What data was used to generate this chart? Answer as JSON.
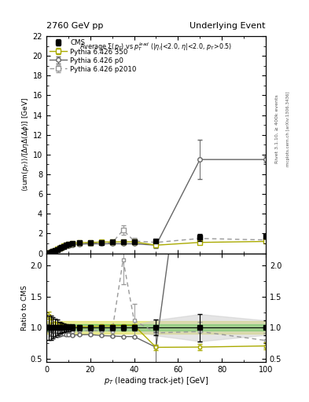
{
  "title_left": "2760 GeV pp",
  "title_right": "Underlying Event",
  "main_title": "Average $\\Sigma(p_T)$ vs $p_T^{lead}$ ($|\\eta_l|$<2.0, $\\eta|$<2.0, $p_T$>0.5)",
  "ylabel_main": "$\\langle$sum$(p_T)\\rangle$/$[\\Delta\\eta\\Delta(\\Delta\\phi)]$ [GeV]",
  "ylabel_ratio": "Ratio to CMS",
  "xlabel": "$p_T$ (leading track-jet) [GeV]",
  "right_label": "Rivet 3.1.10, ≥ 400k events",
  "right_label2": "mcplots.cern.ch [arXiv:1306.3436]",
  "ylim_main": [
    0,
    22
  ],
  "ylim_ratio": [
    0.45,
    2.2
  ],
  "xlim": [
    0,
    100
  ],
  "cms_x": [
    1,
    2,
    3,
    4,
    5,
    6,
    7,
    8,
    9,
    10,
    12,
    15,
    20,
    25,
    30,
    35,
    40,
    50,
    70,
    100
  ],
  "cms_y": [
    0.05,
    0.1,
    0.18,
    0.28,
    0.4,
    0.52,
    0.62,
    0.72,
    0.82,
    0.9,
    1.0,
    1.05,
    1.08,
    1.1,
    1.12,
    1.12,
    1.12,
    1.2,
    1.6,
    1.7
  ],
  "cms_yerr": [
    0.01,
    0.02,
    0.03,
    0.04,
    0.05,
    0.05,
    0.05,
    0.05,
    0.05,
    0.05,
    0.05,
    0.05,
    0.05,
    0.05,
    0.05,
    0.05,
    0.05,
    0.15,
    0.35,
    0.2
  ],
  "py350_x": [
    1,
    2,
    3,
    4,
    5,
    6,
    7,
    8,
    9,
    10,
    12,
    15,
    20,
    25,
    30,
    35,
    40,
    50,
    70,
    100
  ],
  "py350_y": [
    0.06,
    0.11,
    0.19,
    0.3,
    0.42,
    0.54,
    0.64,
    0.74,
    0.84,
    0.92,
    1.02,
    1.07,
    1.1,
    1.13,
    1.15,
    1.16,
    1.16,
    0.82,
    1.1,
    1.2
  ],
  "py350_yerr": [
    0.003,
    0.004,
    0.005,
    0.006,
    0.007,
    0.007,
    0.007,
    0.008,
    0.008,
    0.008,
    0.009,
    0.009,
    0.01,
    0.01,
    0.01,
    0.012,
    0.015,
    0.05,
    0.08,
    0.1
  ],
  "pyp0_x": [
    1,
    2,
    3,
    4,
    5,
    6,
    7,
    8,
    9,
    10,
    12,
    15,
    20,
    25,
    30,
    35,
    40,
    50,
    70,
    100
  ],
  "pyp0_y": [
    0.05,
    0.09,
    0.16,
    0.25,
    0.35,
    0.46,
    0.56,
    0.65,
    0.73,
    0.8,
    0.88,
    0.93,
    0.96,
    0.96,
    0.97,
    0.96,
    0.96,
    0.82,
    9.5,
    9.5
  ],
  "pyp0_yerr": [
    0.003,
    0.004,
    0.005,
    0.006,
    0.007,
    0.007,
    0.007,
    0.008,
    0.008,
    0.008,
    0.009,
    0.009,
    0.01,
    0.01,
    0.01,
    0.012,
    0.015,
    0.3,
    2.0,
    0.3
  ],
  "pyp2010_x": [
    1,
    2,
    3,
    4,
    5,
    6,
    7,
    8,
    9,
    10,
    12,
    15,
    20,
    25,
    30,
    35,
    40,
    50,
    70,
    100
  ],
  "pyp2010_y": [
    0.05,
    0.1,
    0.18,
    0.27,
    0.38,
    0.49,
    0.59,
    0.69,
    0.78,
    0.85,
    0.94,
    1.0,
    1.03,
    1.05,
    1.06,
    2.35,
    1.25,
    1.1,
    1.5,
    1.35
  ],
  "pyp2010_yerr": [
    0.003,
    0.004,
    0.005,
    0.006,
    0.007,
    0.007,
    0.007,
    0.008,
    0.008,
    0.008,
    0.009,
    0.009,
    0.01,
    0.01,
    0.01,
    0.45,
    0.3,
    0.25,
    0.25,
    0.2
  ],
  "color_cms": "#000000",
  "color_py350": "#aaaa00",
  "color_pyp0": "#666666",
  "color_pyp2010": "#999999",
  "band_green": "#00bb00",
  "band_yellow": "#cccc00",
  "band_green_alpha": 0.5,
  "band_yellow_alpha": 0.4
}
